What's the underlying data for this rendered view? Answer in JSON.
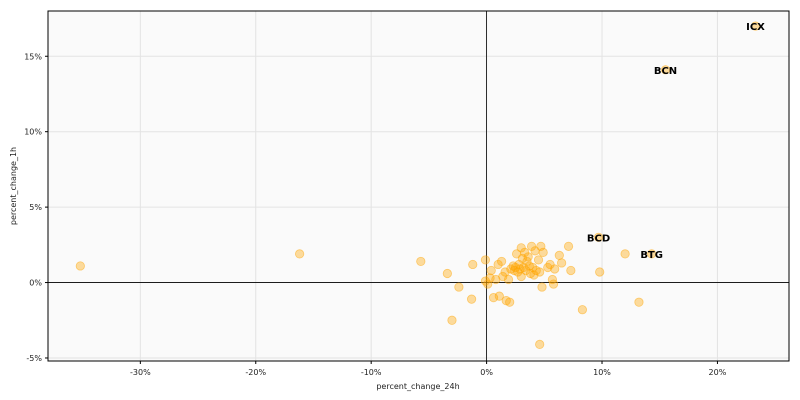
{
  "chart_data": {
    "type": "scatter",
    "title": "",
    "xlabel": "percent_change_24h",
    "ylabel": "percent_change_1h",
    "xlim": [
      -38,
      26.2
    ],
    "ylim": [
      -5.2,
      18
    ],
    "x_ticks": [
      -30,
      -20,
      -10,
      0,
      10,
      20
    ],
    "x_tick_labels": [
      "-30%",
      "-20%",
      "-10%",
      "0%",
      "10%",
      "20%"
    ],
    "y_ticks": [
      -5,
      0,
      5,
      10,
      15
    ],
    "y_tick_labels": [
      "-5%",
      "0%",
      "5%",
      "10%",
      "15%"
    ],
    "grid": true,
    "reference_lines": {
      "x": 0,
      "y": 0
    },
    "colors": {
      "point": "#FFA500",
      "plot_background": "#FAFAFA",
      "grid": "#E3E3E3"
    },
    "labeled_points": [
      {
        "label": "ICX",
        "x": 23.3,
        "y": 17.0
      },
      {
        "label": "BCN",
        "x": 15.5,
        "y": 14.1
      },
      {
        "label": "BCD",
        "x": 9.7,
        "y": 3.0
      },
      {
        "label": "BTG",
        "x": 14.3,
        "y": 1.9
      }
    ],
    "points": [
      {
        "x": -35.2,
        "y": 1.1
      },
      {
        "x": -16.2,
        "y": 1.9
      },
      {
        "x": -5.7,
        "y": 1.4
      },
      {
        "x": -3.4,
        "y": 0.6
      },
      {
        "x": -3.0,
        "y": -2.5
      },
      {
        "x": -2.4,
        "y": -0.3
      },
      {
        "x": -1.2,
        "y": 1.2
      },
      {
        "x": -1.3,
        "y": -1.1
      },
      {
        "x": -0.1,
        "y": 1.5
      },
      {
        "x": -0.1,
        "y": 0.1
      },
      {
        "x": 0.1,
        "y": -0.1
      },
      {
        "x": 0.3,
        "y": 0.3
      },
      {
        "x": 0.4,
        "y": 0.8
      },
      {
        "x": 0.6,
        "y": -1.0
      },
      {
        "x": 0.8,
        "y": 0.2
      },
      {
        "x": 1.0,
        "y": 1.2
      },
      {
        "x": 1.1,
        "y": -0.9
      },
      {
        "x": 1.3,
        "y": 1.4
      },
      {
        "x": 1.4,
        "y": 0.4
      },
      {
        "x": 1.6,
        "y": 0.7
      },
      {
        "x": 1.7,
        "y": -1.2
      },
      {
        "x": 1.9,
        "y": 0.2
      },
      {
        "x": 2.0,
        "y": -1.3
      },
      {
        "x": 2.1,
        "y": 0.9
      },
      {
        "x": 2.3,
        "y": 1.1
      },
      {
        "x": 2.4,
        "y": 0.8
      },
      {
        "x": 2.5,
        "y": 1.0
      },
      {
        "x": 2.6,
        "y": 1.9
      },
      {
        "x": 2.7,
        "y": 0.7
      },
      {
        "x": 2.8,
        "y": 1.2
      },
      {
        "x": 2.9,
        "y": 0.9
      },
      {
        "x": 3.0,
        "y": 2.3
      },
      {
        "x": 3.0,
        "y": 0.4
      },
      {
        "x": 3.1,
        "y": 1.6
      },
      {
        "x": 3.2,
        "y": 1.0
      },
      {
        "x": 3.3,
        "y": 2.0
      },
      {
        "x": 3.4,
        "y": 0.8
      },
      {
        "x": 3.5,
        "y": 1.4
      },
      {
        "x": 3.6,
        "y": 1.7
      },
      {
        "x": 3.7,
        "y": 1.1
      },
      {
        "x": 3.8,
        "y": 0.6
      },
      {
        "x": 3.9,
        "y": 2.4
      },
      {
        "x": 4.0,
        "y": 1.0
      },
      {
        "x": 4.1,
        "y": 0.5
      },
      {
        "x": 4.2,
        "y": 2.1
      },
      {
        "x": 4.3,
        "y": 0.8
      },
      {
        "x": 4.5,
        "y": 1.5
      },
      {
        "x": 4.6,
        "y": 0.7
      },
      {
        "x": 4.7,
        "y": 2.4
      },
      {
        "x": 4.8,
        "y": -0.3
      },
      {
        "x": 4.9,
        "y": 2.0
      },
      {
        "x": 5.3,
        "y": 1.0
      },
      {
        "x": 5.5,
        "y": 1.2
      },
      {
        "x": 5.7,
        "y": 0.2
      },
      {
        "x": 5.8,
        "y": -0.1
      },
      {
        "x": 5.9,
        "y": 0.9
      },
      {
        "x": 6.3,
        "y": 1.8
      },
      {
        "x": 6.5,
        "y": 1.3
      },
      {
        "x": 7.1,
        "y": 2.4
      },
      {
        "x": 7.3,
        "y": 0.8
      },
      {
        "x": 4.6,
        "y": -4.1
      },
      {
        "x": 8.3,
        "y": -1.8
      },
      {
        "x": 9.8,
        "y": 0.7
      },
      {
        "x": 12.0,
        "y": 1.9
      },
      {
        "x": 13.2,
        "y": -1.3
      },
      {
        "x": 9.7,
        "y": 3.0
      },
      {
        "x": 14.3,
        "y": 1.9
      },
      {
        "x": 15.5,
        "y": 14.1
      },
      {
        "x": 23.3,
        "y": 17.0
      }
    ]
  }
}
